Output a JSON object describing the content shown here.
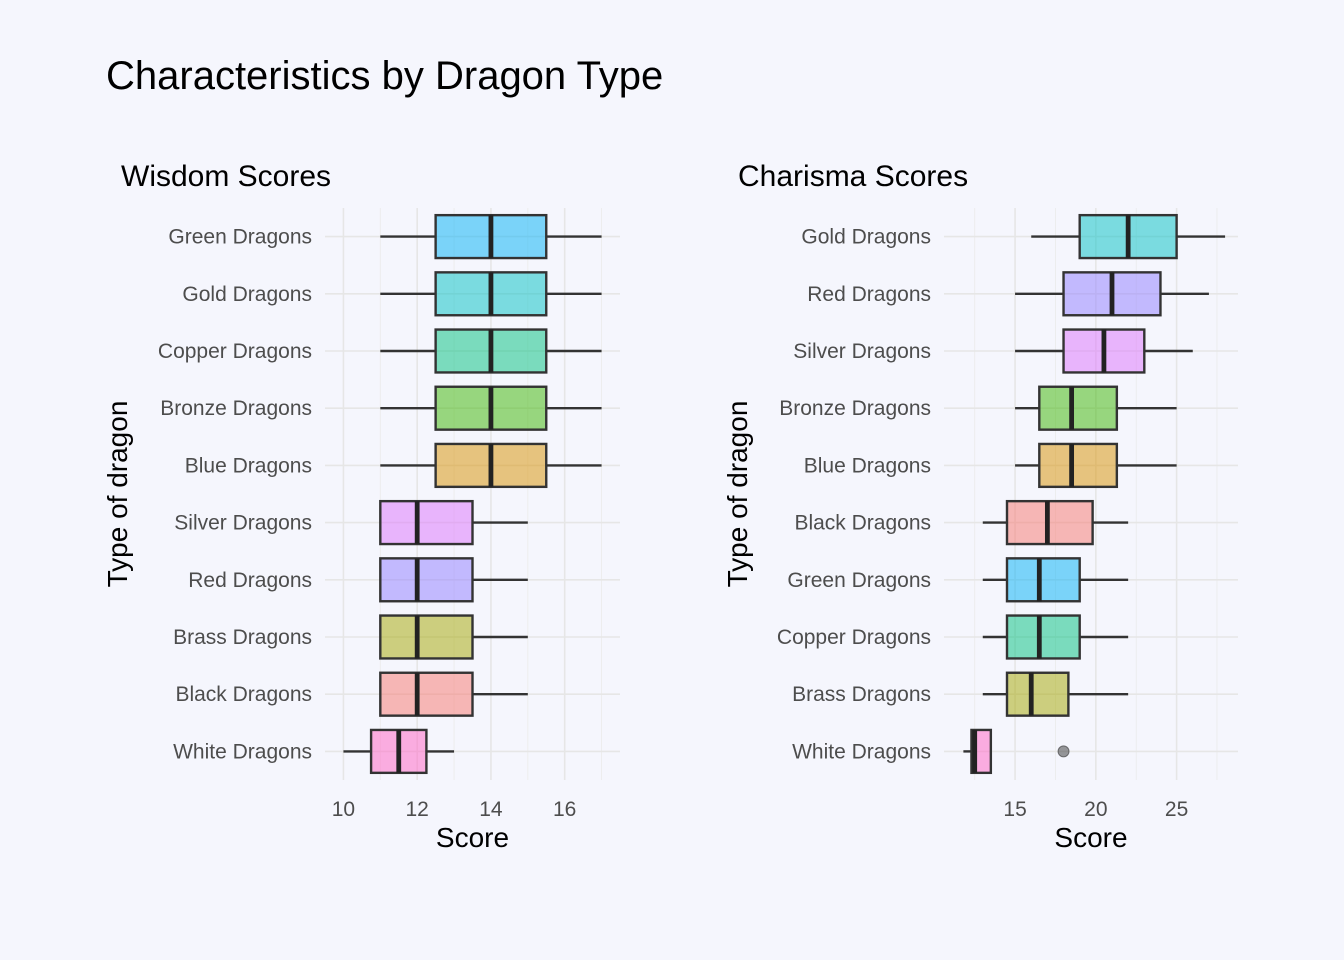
{
  "title": "Characteristics by Dragon Type",
  "chart_data": [
    {
      "type": "boxplot",
      "title": "Wisdom Scores",
      "xlabel": "Score",
      "ylabel": "Type of dragon",
      "xlim": [
        9.5,
        17.5
      ],
      "xticks": [
        10,
        12,
        14,
        16
      ],
      "grid": true,
      "categories": [
        "White Dragons",
        "Black Dragons",
        "Brass Dragons",
        "Red Dragons",
        "Silver Dragons",
        "Blue Dragons",
        "Bronze Dragons",
        "Copper Dragons",
        "Gold Dragons",
        "Green Dragons"
      ],
      "boxes": [
        {
          "label": "White Dragons",
          "color": "#FF61C3",
          "whisker_low": 10,
          "q1": 10.75,
          "median": 11.5,
          "q3": 12.25,
          "whisker_high": 13,
          "outliers": []
        },
        {
          "label": "Black Dragons",
          "color": "#F8766D",
          "whisker_low": 11,
          "q1": 11,
          "median": 12,
          "q3": 13.5,
          "whisker_high": 15,
          "outliers": []
        },
        {
          "label": "Brass Dragons",
          "color": "#A3A500",
          "whisker_low": 11,
          "q1": 11,
          "median": 12,
          "q3": 13.5,
          "whisker_high": 15,
          "outliers": []
        },
        {
          "label": "Red Dragons",
          "color": "#8F7CFF",
          "whisker_low": 11,
          "q1": 11,
          "median": 12,
          "q3": 13.5,
          "whisker_high": 15,
          "outliers": []
        },
        {
          "label": "Silver Dragons",
          "color": "#DB72FB",
          "whisker_low": 11,
          "q1": 11,
          "median": 12,
          "q3": 13.5,
          "whisker_high": 15,
          "outliers": []
        },
        {
          "label": "Blue Dragons",
          "color": "#D89000",
          "whisker_low": 11,
          "q1": 12.5,
          "median": 14,
          "q3": 15.5,
          "whisker_high": 17,
          "outliers": []
        },
        {
          "label": "Bronze Dragons",
          "color": "#39B600",
          "whisker_low": 11,
          "q1": 12.5,
          "median": 14,
          "q3": 15.5,
          "whisker_high": 17,
          "outliers": []
        },
        {
          "label": "Copper Dragons",
          "color": "#00BF7D",
          "whisker_low": 11,
          "q1": 12.5,
          "median": 14,
          "q3": 15.5,
          "whisker_high": 17,
          "outliers": []
        },
        {
          "label": "Gold Dragons",
          "color": "#00BFC4",
          "whisker_low": 11,
          "q1": 12.5,
          "median": 14,
          "q3": 15.5,
          "whisker_high": 17,
          "outliers": []
        },
        {
          "label": "Green Dragons",
          "color": "#00B0F6",
          "whisker_low": 11,
          "q1": 12.5,
          "median": 14,
          "q3": 15.5,
          "whisker_high": 17,
          "outliers": []
        }
      ]
    },
    {
      "type": "boxplot",
      "title": "Charisma Scores",
      "xlabel": "Score",
      "ylabel": "Type of dragon",
      "xlim": [
        10.6,
        28.8
      ],
      "xticks": [
        15,
        20,
        25
      ],
      "grid": true,
      "categories": [
        "White Dragons",
        "Brass Dragons",
        "Copper Dragons",
        "Green Dragons",
        "Black Dragons",
        "Blue Dragons",
        "Bronze Dragons",
        "Silver Dragons",
        "Red Dragons",
        "Gold Dragons"
      ],
      "boxes": [
        {
          "label": "White Dragons",
          "color": "#FF61C3",
          "whisker_low": 11.8,
          "q1": 12.3,
          "median": 12.5,
          "q3": 13.5,
          "whisker_high": 13.5,
          "outliers": [
            18
          ]
        },
        {
          "label": "Brass Dragons",
          "color": "#A3A500",
          "whisker_low": 13,
          "q1": 14.5,
          "median": 16,
          "q3": 18.3,
          "whisker_high": 22,
          "outliers": []
        },
        {
          "label": "Copper Dragons",
          "color": "#00BF7D",
          "whisker_low": 13,
          "q1": 14.5,
          "median": 16.5,
          "q3": 19,
          "whisker_high": 22,
          "outliers": []
        },
        {
          "label": "Green Dragons",
          "color": "#00B0F6",
          "whisker_low": 13,
          "q1": 14.5,
          "median": 16.5,
          "q3": 19,
          "whisker_high": 22,
          "outliers": []
        },
        {
          "label": "Black Dragons",
          "color": "#F8766D",
          "whisker_low": 13,
          "q1": 14.5,
          "median": 17,
          "q3": 19.8,
          "whisker_high": 22,
          "outliers": []
        },
        {
          "label": "Blue Dragons",
          "color": "#D89000",
          "whisker_low": 15,
          "q1": 16.5,
          "median": 18.5,
          "q3": 21.3,
          "whisker_high": 25,
          "outliers": []
        },
        {
          "label": "Bronze Dragons",
          "color": "#39B600",
          "whisker_low": 15,
          "q1": 16.5,
          "median": 18.5,
          "q3": 21.3,
          "whisker_high": 25,
          "outliers": []
        },
        {
          "label": "Silver Dragons",
          "color": "#DB72FB",
          "whisker_low": 15,
          "q1": 18,
          "median": 20.5,
          "q3": 23,
          "whisker_high": 26,
          "outliers": []
        },
        {
          "label": "Red Dragons",
          "color": "#8F7CFF",
          "whisker_low": 15,
          "q1": 18,
          "median": 21,
          "q3": 24,
          "whisker_high": 27,
          "outliers": []
        },
        {
          "label": "Gold Dragons",
          "color": "#00BFC4",
          "whisker_low": 16,
          "q1": 19,
          "median": 22,
          "q3": 25,
          "whisker_high": 28,
          "outliers": []
        }
      ]
    }
  ]
}
